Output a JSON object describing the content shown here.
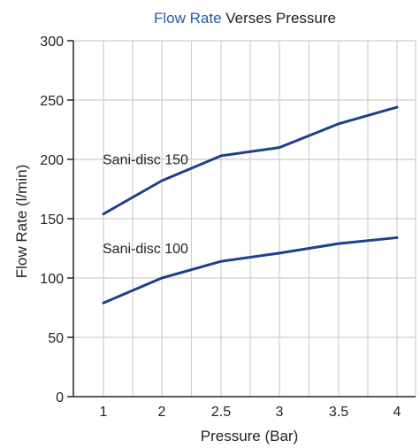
{
  "chart_data": {
    "type": "line",
    "title_highlight": "Flow Rate",
    "title_rest": " Verses Pressure",
    "xlabel": "Pressure (Bar)",
    "ylabel": "Flow Rate (l/min)",
    "categories": [
      "1",
      "2",
      "2.5",
      "3",
      "3.5",
      "4"
    ],
    "ylim": [
      0,
      300
    ],
    "yticks": [
      0,
      50,
      100,
      150,
      200,
      250,
      300
    ],
    "grid": true,
    "series": [
      {
        "name": "Sani-disc 150",
        "values": [
          154,
          182,
          203,
          210,
          230,
          244
        ]
      },
      {
        "name": "Sani-disc 100",
        "values": [
          79,
          100,
          114,
          121,
          129,
          134
        ]
      }
    ],
    "colors": {
      "line": "#1f3f8f",
      "title_highlight": "#2b5aa8",
      "title_rest": "#222222",
      "grid": "#cfcfcf",
      "axis": "#222222"
    }
  }
}
